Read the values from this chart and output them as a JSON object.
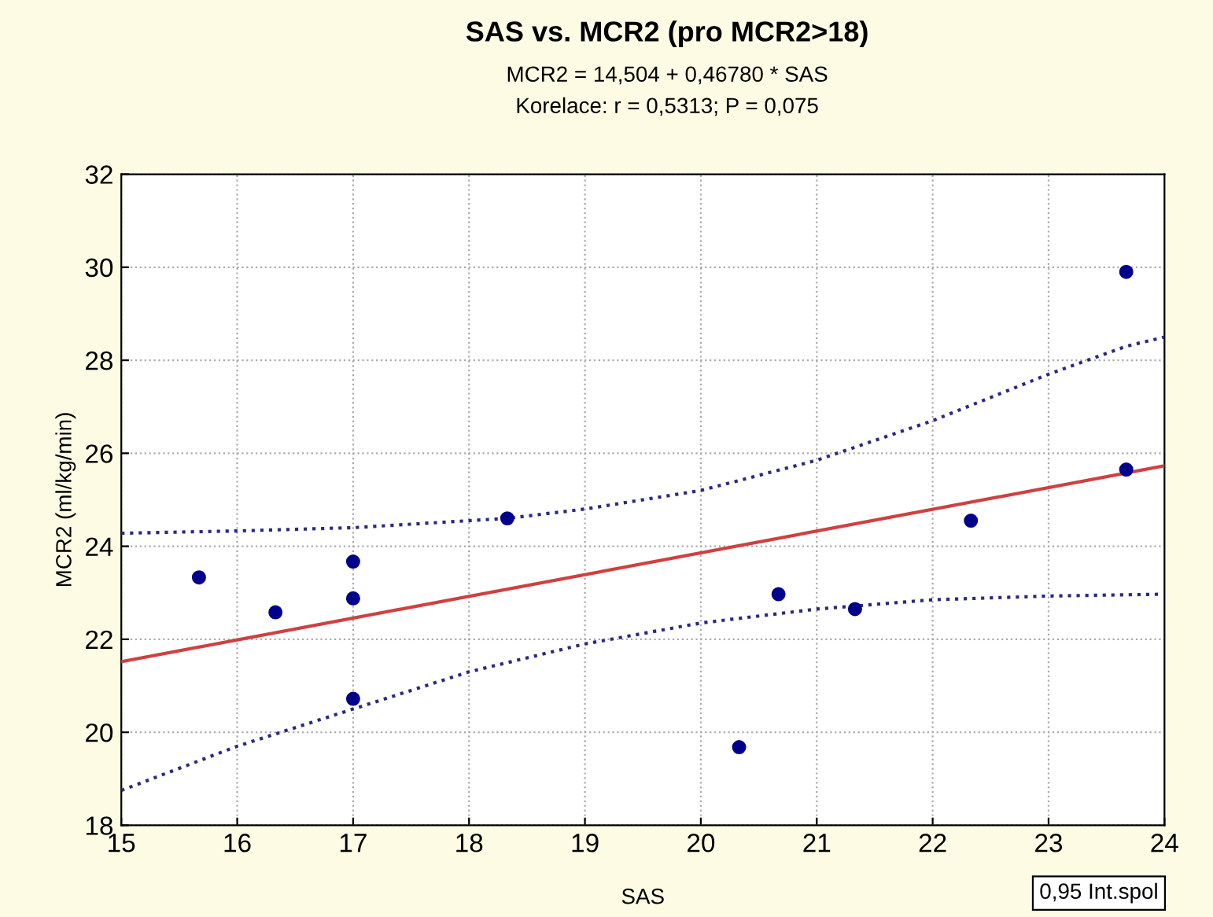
{
  "chart_data": {
    "type": "scatter",
    "title": "SAS vs. MCR2 (pro MCR2>18)",
    "subtitle": "MCR2 = 14,504 + 0,46780 * SAS\nKorelace: r = 0,5313; P = 0,075",
    "xlabel": "SAS",
    "ylabel": "MCR2 (ml/kg/min)",
    "xlim": [
      15,
      24
    ],
    "xticks": [
      15,
      16,
      17,
      18,
      19,
      20,
      21,
      22,
      23,
      24
    ],
    "ylim": [
      18,
      32
    ],
    "yticks": [
      18,
      20,
      22,
      24,
      26,
      28,
      30,
      32
    ],
    "grid": true,
    "annotations": [
      "0,95 Int.spol"
    ],
    "series": [
      {
        "marker": "circle",
        "color": "#00008b",
        "x": [
          15.67,
          16.33,
          17,
          17,
          17,
          18.33,
          20.33,
          20.67,
          21.33,
          22.33,
          23.67,
          23.67
        ],
        "values": [
          23.33,
          22.58,
          23.67,
          22.88,
          20.72,
          24.6,
          19.68,
          22.97,
          22.65,
          24.55,
          29.9,
          25.65
        ]
      },
      {
        "type": "line",
        "color": "#d04040",
        "line_style": "solid",
        "x": [
          15,
          24
        ],
        "values": [
          21.52,
          25.73
        ]
      },
      {
        "type": "line",
        "color": "#2a2a80",
        "line_style": "dotted",
        "x": [
          15,
          16,
          17,
          18.33,
          19,
          20,
          21,
          22,
          23,
          23.67,
          24
        ],
        "values": [
          24.28,
          24.33,
          24.4,
          24.6,
          24.8,
          25.2,
          25.85,
          26.7,
          27.7,
          28.3,
          28.5
        ]
      },
      {
        "type": "line",
        "color": "#2a2a80",
        "line_style": "dotted",
        "x": [
          15,
          16,
          17,
          18,
          19,
          20,
          21,
          22,
          23,
          24
        ],
        "values": [
          18.75,
          19.7,
          20.5,
          21.3,
          21.9,
          22.35,
          22.65,
          22.85,
          22.93,
          22.97
        ]
      }
    ]
  }
}
